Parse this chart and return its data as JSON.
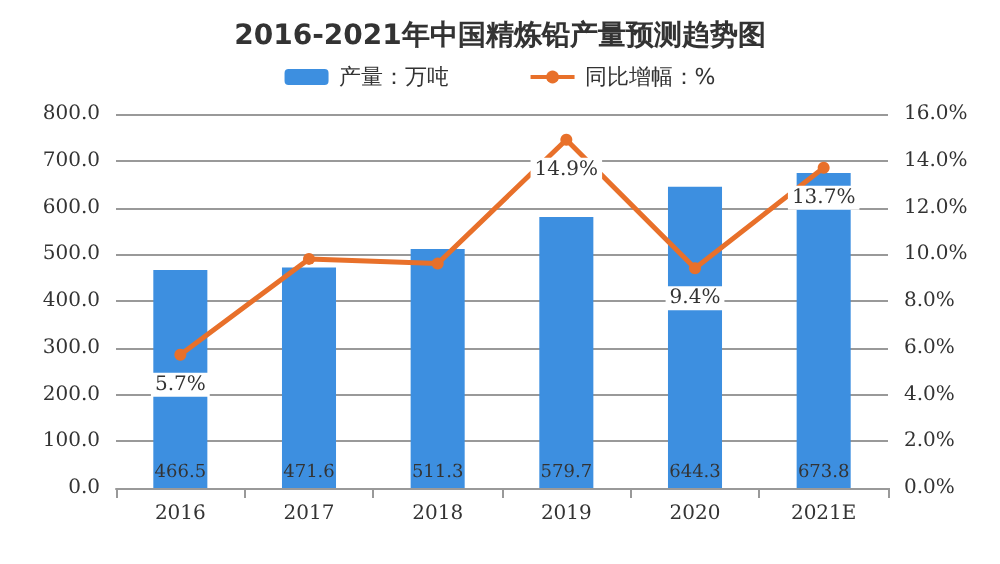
{
  "chart_data": {
    "type": "bar",
    "title": "2016-2021年中国精炼铅产量预测趋势图",
    "categories": [
      "2016",
      "2017",
      "2018",
      "2019",
      "2020",
      "2021E"
    ],
    "series": [
      {
        "name": "产量：万吨",
        "color": "#3d8fe0",
        "values": [
          466.5,
          471.6,
          511.3,
          579.7,
          644.3,
          673.8
        ],
        "data_labels": true
      },
      {
        "name": "同比增幅：%",
        "type": "line",
        "axis": "y2",
        "color": "#e8702a",
        "values": [
          5.7,
          9.8,
          9.6,
          14.9,
          9.4,
          13.7
        ],
        "value_labels": [
          "5.7%",
          null,
          null,
          "14.9%",
          "9.4%",
          "13.7%"
        ]
      }
    ],
    "ylim": [
      0,
      800
    ],
    "yticks": [
      {
        "value": 0,
        "label": "0.0"
      },
      {
        "value": 100,
        "label": "100.0"
      },
      {
        "value": 200,
        "label": "200.0"
      },
      {
        "value": 300,
        "label": "300.0"
      },
      {
        "value": 400,
        "label": "400.0"
      },
      {
        "value": 500,
        "label": "500.0"
      },
      {
        "value": 600,
        "label": "600.0"
      },
      {
        "value": 700,
        "label": "700.0"
      },
      {
        "value": 800,
        "label": "800.0"
      }
    ],
    "y2lim": [
      0,
      16
    ],
    "y2ticks": [
      {
        "value": 0,
        "label": "0.0%"
      },
      {
        "value": 2,
        "label": "2.0%"
      },
      {
        "value": 4,
        "label": "4.0%"
      },
      {
        "value": 6,
        "label": "6.0%"
      },
      {
        "value": 8,
        "label": "8.0%"
      },
      {
        "value": 10,
        "label": "10.0%"
      },
      {
        "value": 12,
        "label": "12.0%"
      },
      {
        "value": 14,
        "label": "14.0%"
      },
      {
        "value": 16,
        "label": "16.0%"
      }
    ],
    "grid": "y",
    "legend": "top",
    "marker": "circle",
    "line_style": "solid"
  }
}
